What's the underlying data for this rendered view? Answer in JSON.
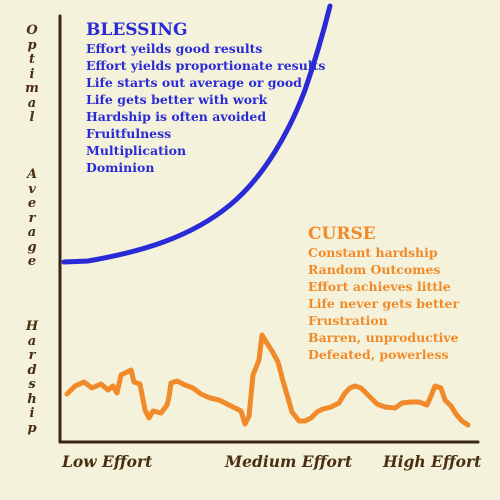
{
  "y_axis": {
    "optimal": "Optimal",
    "average": "Average",
    "hardship": "Hardship"
  },
  "x_axis": {
    "low": "Low Effort",
    "medium": "Medium Effort",
    "high": "High Effort"
  },
  "blessing": {
    "title": "BLESSING",
    "items": [
      "Effort yeilds good results",
      "Effort yields proportionate results",
      "Life starts out average or good",
      "Life gets better with work",
      "Hardship is often avoided",
      "Fruitfulness",
      "Multiplication",
      "Dominion"
    ]
  },
  "curse": {
    "title": "CURSE",
    "items": [
      "Constant hardship",
      "Random Outcomes",
      "Effort achieves little",
      "Life never gets better",
      "Frustration",
      "Barren, unproductive",
      "Defeated, powerless"
    ]
  },
  "colors": {
    "background": "#f4f2da",
    "axis": "#4a2e12",
    "blessing": "#2a2ad6",
    "curse": "#f08a2a"
  }
}
